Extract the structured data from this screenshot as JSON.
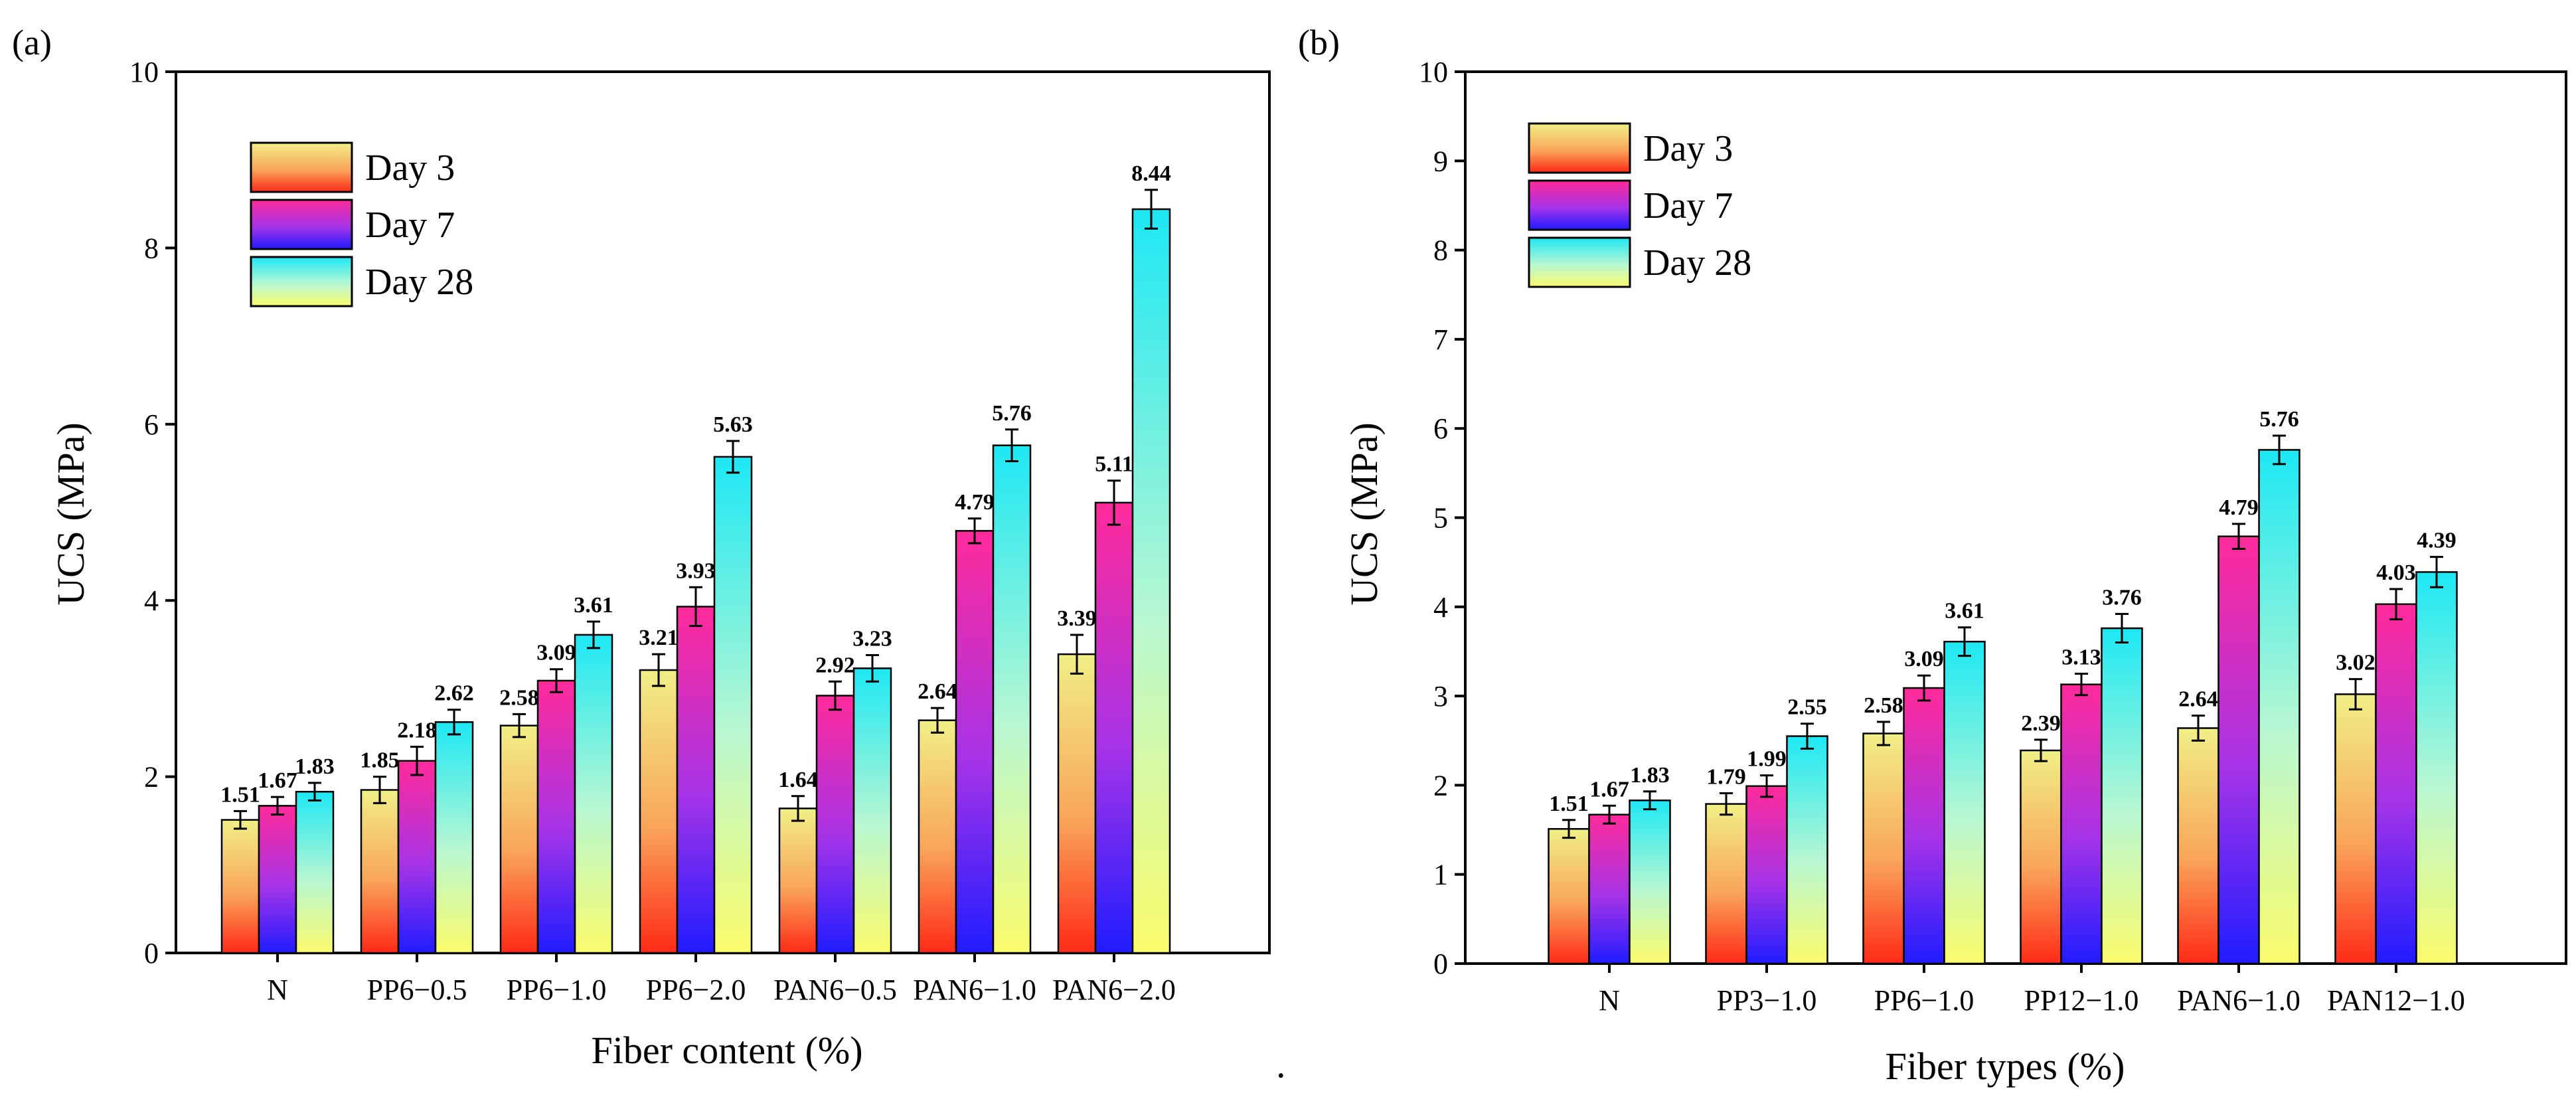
{
  "chart_data": [
    {
      "panel_label": "(a)",
      "type": "bar",
      "xlabel": "Fiber content (%)",
      "ylabel": "UCS (MPa)",
      "ylim": [
        0,
        10
      ],
      "yticks": [
        "0",
        "2",
        "4",
        "6",
        "8",
        "10"
      ],
      "legend_placement": "top-left",
      "categories": [
        "N",
        "PP6−0.5",
        "PP6−1.0",
        "PP6−2.0",
        "PAN6−0.5",
        "PAN6−1.0",
        "PAN6−2.0"
      ],
      "series": [
        {
          "name": "Day 3",
          "values": [
            1.51,
            1.85,
            2.58,
            3.21,
            1.64,
            2.64,
            3.39
          ],
          "labels": [
            "1.51",
            "1.85",
            "2.58",
            "3.21",
            "1.64",
            "2.64",
            "3.39"
          ],
          "errors": [
            0.1,
            0.15,
            0.13,
            0.18,
            0.14,
            0.14,
            0.22
          ]
        },
        {
          "name": "Day 7",
          "values": [
            1.67,
            2.18,
            3.09,
            3.93,
            2.92,
            4.79,
            5.11
          ],
          "labels": [
            "1.67",
            "2.18",
            "3.09",
            "3.93",
            "2.92",
            "4.79",
            "5.11"
          ],
          "errors": [
            0.1,
            0.16,
            0.13,
            0.22,
            0.16,
            0.14,
            0.25
          ]
        },
        {
          "name": "Day 28",
          "values": [
            1.83,
            2.62,
            3.61,
            5.63,
            3.23,
            5.76,
            8.44
          ],
          "labels": [
            "1.83",
            "2.62",
            "3.61",
            "5.63",
            "3.23",
            "5.76",
            "8.44"
          ],
          "errors": [
            0.1,
            0.14,
            0.15,
            0.18,
            0.15,
            0.18,
            0.22
          ]
        }
      ]
    },
    {
      "panel_label": "(b)",
      "type": "bar",
      "xlabel": "Fiber types (%)",
      "ylabel": "UCS (MPa)",
      "ylim": [
        0,
        10
      ],
      "yticks": [
        "0",
        "1",
        "2",
        "3",
        "4",
        "5",
        "6",
        "7",
        "8",
        "9",
        "10"
      ],
      "legend_placement": "top-left",
      "categories": [
        "N",
        "PP3−1.0",
        "PP6−1.0",
        "PP12−1.0",
        "PAN6−1.0",
        "PAN12−1.0"
      ],
      "series": [
        {
          "name": "Day 3",
          "values": [
            1.51,
            1.79,
            2.58,
            2.39,
            2.64,
            3.02
          ],
          "labels": [
            "1.51",
            "1.79",
            "2.58",
            "2.39",
            "2.64",
            "3.02"
          ],
          "errors": [
            0.1,
            0.12,
            0.13,
            0.12,
            0.14,
            0.17
          ]
        },
        {
          "name": "Day 7",
          "values": [
            1.67,
            1.99,
            3.09,
            3.13,
            4.79,
            4.03
          ],
          "labels": [
            "1.67",
            "1.99",
            "3.09",
            "3.13",
            "4.79",
            "4.03"
          ],
          "errors": [
            0.1,
            0.12,
            0.14,
            0.12,
            0.14,
            0.17
          ]
        },
        {
          "name": "Day 28",
          "values": [
            1.83,
            2.55,
            3.61,
            3.76,
            5.76,
            4.39
          ],
          "labels": [
            "1.83",
            "2.55",
            "3.61",
            "3.76",
            "5.76",
            "4.39"
          ],
          "errors": [
            0.1,
            0.14,
            0.16,
            0.16,
            0.16,
            0.17
          ]
        }
      ]
    }
  ],
  "stray_mark": ".",
  "colors": {
    "axis": "#000000",
    "day3": [
      "#ff2a16",
      "#f1ef86"
    ],
    "day7": [
      "#1f1cff",
      "#ff2a9a"
    ],
    "day28": [
      "#fbfb6c",
      "#1de8f4"
    ]
  }
}
